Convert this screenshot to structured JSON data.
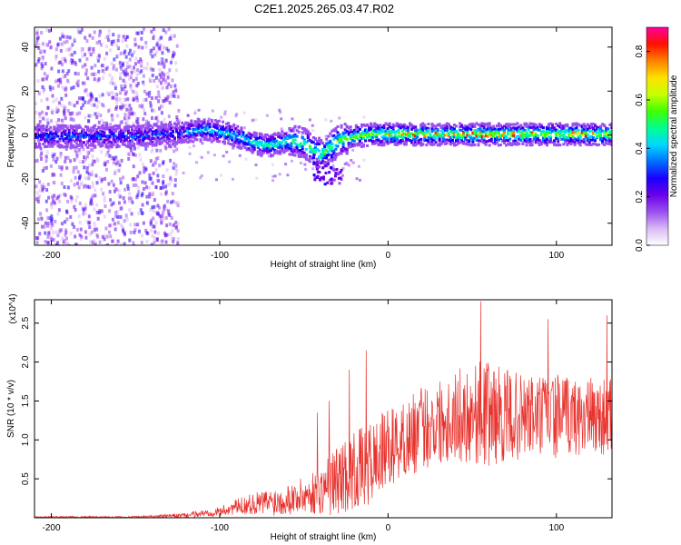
{
  "figure_title": "C2E1.2025.265.03.47.R02",
  "chart_data": [
    {
      "type": "heatmap",
      "name": "spectrogram",
      "xlabel": "Height of straight line (km)",
      "ylabel": "Frequency (Hz)",
      "xlim": [
        -210,
        133
      ],
      "ylim": [
        -50,
        49
      ],
      "x_ticks": [
        -200,
        -100,
        0,
        100
      ],
      "x_tick_labels": [
        "-200",
        "-100",
        "0",
        "100"
      ],
      "y_ticks": [
        -40,
        -20,
        0,
        20,
        40
      ],
      "y_tick_labels": [
        "-40",
        "-20",
        "0",
        "20",
        "40"
      ],
      "colorbar": {
        "label": "Normalized spectral amplitude",
        "range": [
          0,
          0.9
        ],
        "ticks": [
          0,
          0.2,
          0.4,
          0.6,
          0.8
        ],
        "tick_labels": [
          "0.0",
          "0.2",
          "0.4",
          "0.6",
          "0.8"
        ],
        "colormap": [
          "#ffffff",
          "#d9b8f4",
          "#9a4ff0",
          "#6a00e8",
          "#1a00ff",
          "#0070ff",
          "#00d8ff",
          "#00ff90",
          "#40ff00",
          "#c8ff00",
          "#ffe000",
          "#ff8000",
          "#ff1000",
          "#ff00a0"
        ]
      },
      "band_center_profile": {
        "x": [
          -210,
          -150,
          -120,
          -110,
          -100,
          -90,
          -80,
          -70,
          -60,
          -50,
          -45,
          -40,
          -35,
          -30,
          -20,
          -10,
          0,
          20,
          40,
          60,
          80,
          100,
          120,
          133
        ],
        "freq_hz": [
          0,
          0,
          2,
          3,
          2,
          0,
          -3,
          -4,
          -2,
          -3,
          -6,
          -8,
          -5,
          -2,
          0,
          1,
          1,
          1,
          1,
          1,
          1,
          1,
          1,
          1
        ]
      },
      "scatter_noise_region_x": [
        -210,
        -125
      ],
      "grid": false
    },
    {
      "type": "line",
      "name": "snr",
      "xlabel": "Height of straight line (km)",
      "ylabel": "SNR (10 * v/v)",
      "y_scale_note": "(x10^4)",
      "xlim": [
        -210,
        133
      ],
      "ylim": [
        0,
        2.8
      ],
      "x_ticks": [
        -200,
        -100,
        0,
        100
      ],
      "x_tick_labels": [
        "-200",
        "-100",
        "0",
        "100"
      ],
      "y_ticks": [
        0.5,
        1.0,
        1.5,
        2.0,
        2.5
      ],
      "y_tick_labels": [
        "0.5",
        "1.0",
        "1.5",
        "2.0",
        "2.5"
      ],
      "line_color": "#e8322d",
      "envelope": {
        "x": [
          -210,
          -150,
          -120,
          -100,
          -90,
          -80,
          -70,
          -60,
          -50,
          -40,
          -35,
          -30,
          -20,
          -10,
          0,
          10,
          20,
          30,
          40,
          50,
          60,
          70,
          80,
          90,
          100,
          110,
          120,
          133
        ],
        "mean": [
          0.01,
          0.01,
          0.03,
          0.08,
          0.14,
          0.18,
          0.2,
          0.24,
          0.28,
          0.34,
          0.42,
          0.5,
          0.6,
          0.7,
          0.9,
          1.0,
          1.15,
          1.25,
          1.3,
          1.35,
          1.35,
          1.3,
          1.3,
          1.3,
          1.3,
          1.3,
          1.3,
          1.3
        ],
        "spread": [
          0.01,
          0.01,
          0.03,
          0.06,
          0.1,
          0.14,
          0.18,
          0.2,
          0.24,
          0.3,
          0.4,
          0.45,
          0.5,
          0.55,
          0.5,
          0.5,
          0.55,
          0.55,
          0.6,
          0.65,
          0.7,
          0.6,
          0.55,
          0.55,
          0.55,
          0.5,
          0.5,
          0.5
        ]
      },
      "peaks": [
        {
          "x": -42,
          "y": 1.35
        },
        {
          "x": -35,
          "y": 1.5
        },
        {
          "x": -23,
          "y": 1.9
        },
        {
          "x": -13,
          "y": 2.15
        },
        {
          "x": 55,
          "y": 2.78
        },
        {
          "x": 95,
          "y": 2.55
        },
        {
          "x": 130,
          "y": 2.6
        }
      ]
    }
  ]
}
